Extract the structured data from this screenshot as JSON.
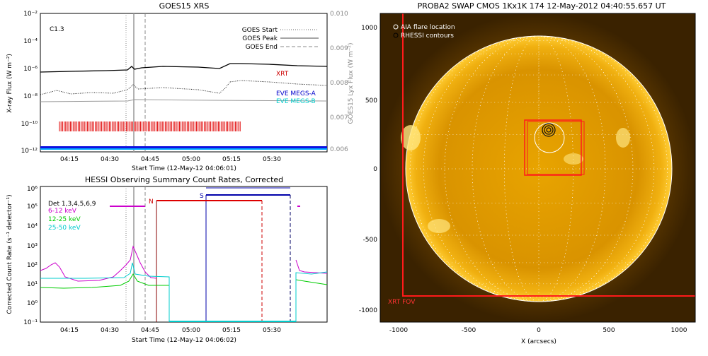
{
  "chart_data": [
    {
      "type": "line",
      "title": "GOES15 XRS",
      "xlabel": "Start Time (12-May-12 04:06:01)",
      "ylabel": "X-ray Flux (W m⁻²)",
      "ylabel_right": "GOES15 Lyx Flux (W m⁻²)",
      "x_ticks": [
        "04:15",
        "04:30",
        "04:45",
        "05:00",
        "05:15",
        "05:30"
      ],
      "y_ticks": [
        "10⁻²",
        "10⁻⁴",
        "10⁻⁶",
        "10⁻⁸",
        "10⁻¹⁰",
        "10⁻¹²"
      ],
      "y_right_ticks": [
        "0.010",
        "0.009",
        "0.008",
        "0.007",
        "0.006"
      ],
      "yscale": "log",
      "ylim": [
        1e-12,
        0.01
      ],
      "annotation": "C1.3",
      "legend": [
        "GOES Start",
        "GOES Peak",
        "GOES End"
      ],
      "series_labels": [
        "XRT",
        "EVE MEGS-A",
        "EVE MEGS-B"
      ],
      "colors": {
        "xrt": "#cc0000",
        "megs_a": "#0000cc",
        "megs_b": "#00cccc"
      }
    },
    {
      "type": "line",
      "title": "HESSI Observing Summary Count Rates, Corrected",
      "xlabel": "Start Time (12-May-12 04:06:02)",
      "ylabel": "Corrected Count Rate (s⁻¹ detector⁻¹)",
      "x_ticks": [
        "04:15",
        "04:30",
        "04:45",
        "05:00",
        "05:15",
        "05:30"
      ],
      "y_ticks": [
        "10⁵",
        "10⁴",
        "10³",
        "10²",
        "10¹",
        "10⁰",
        "10⁻¹"
      ],
      "y_top_tick": "10⁶",
      "yscale": "log",
      "ylim": [
        0.1,
        1000000.0
      ],
      "legend": [
        "Det 1,3,4,5,6,9",
        "6-12 keV",
        "12-25 keV",
        "25-50 keV"
      ],
      "colors": {
        "6-12": "#cc00cc",
        "12-25": "#00cc00",
        "25-50": "#00cccc"
      },
      "markers": [
        "N",
        "S"
      ]
    },
    {
      "type": "image",
      "title": "PROBA2 SWAP CMOS 1Kx1K 174 12-May-2012 04:40:55.657 UT",
      "xlabel": "X (arcsecs)",
      "x_ticks": [
        "-1000",
        "-500",
        "0",
        "500",
        "1000"
      ],
      "y_ticks": [
        "1000",
        "500",
        "0",
        "-500",
        "-1000"
      ],
      "legend": [
        "AIA flare location",
        "RHESSI contours"
      ],
      "fov_label": "XRT FOV"
    }
  ]
}
